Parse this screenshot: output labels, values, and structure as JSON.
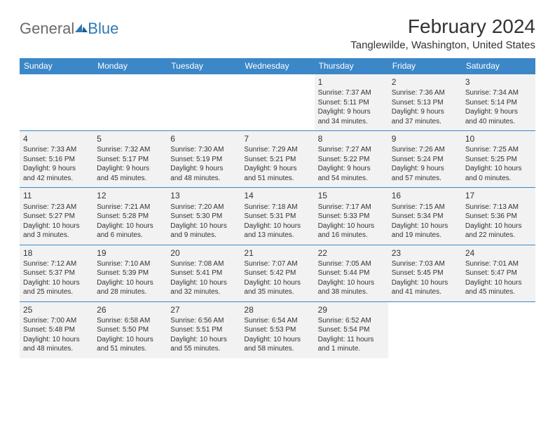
{
  "logo": {
    "general": "General",
    "blue": "Blue"
  },
  "title": "February 2024",
  "location": "Tanglewilde, Washington, United States",
  "colors": {
    "header_bg": "#3b87c8",
    "header_text": "#ffffff",
    "cell_filled_bg": "#f2f2f2",
    "cell_text": "#333333",
    "border": "#3b87c8",
    "logo_gray": "#6a6a6a",
    "logo_blue": "#2f78b7"
  },
  "weekdays": [
    "Sunday",
    "Monday",
    "Tuesday",
    "Wednesday",
    "Thursday",
    "Friday",
    "Saturday"
  ],
  "weeks": [
    [
      null,
      null,
      null,
      null,
      {
        "day": "1",
        "sunrise": "Sunrise: 7:37 AM",
        "sunset": "Sunset: 5:11 PM",
        "daylight1": "Daylight: 9 hours",
        "daylight2": "and 34 minutes."
      },
      {
        "day": "2",
        "sunrise": "Sunrise: 7:36 AM",
        "sunset": "Sunset: 5:13 PM",
        "daylight1": "Daylight: 9 hours",
        "daylight2": "and 37 minutes."
      },
      {
        "day": "3",
        "sunrise": "Sunrise: 7:34 AM",
        "sunset": "Sunset: 5:14 PM",
        "daylight1": "Daylight: 9 hours",
        "daylight2": "and 40 minutes."
      }
    ],
    [
      {
        "day": "4",
        "sunrise": "Sunrise: 7:33 AM",
        "sunset": "Sunset: 5:16 PM",
        "daylight1": "Daylight: 9 hours",
        "daylight2": "and 42 minutes."
      },
      {
        "day": "5",
        "sunrise": "Sunrise: 7:32 AM",
        "sunset": "Sunset: 5:17 PM",
        "daylight1": "Daylight: 9 hours",
        "daylight2": "and 45 minutes."
      },
      {
        "day": "6",
        "sunrise": "Sunrise: 7:30 AM",
        "sunset": "Sunset: 5:19 PM",
        "daylight1": "Daylight: 9 hours",
        "daylight2": "and 48 minutes."
      },
      {
        "day": "7",
        "sunrise": "Sunrise: 7:29 AM",
        "sunset": "Sunset: 5:21 PM",
        "daylight1": "Daylight: 9 hours",
        "daylight2": "and 51 minutes."
      },
      {
        "day": "8",
        "sunrise": "Sunrise: 7:27 AM",
        "sunset": "Sunset: 5:22 PM",
        "daylight1": "Daylight: 9 hours",
        "daylight2": "and 54 minutes."
      },
      {
        "day": "9",
        "sunrise": "Sunrise: 7:26 AM",
        "sunset": "Sunset: 5:24 PM",
        "daylight1": "Daylight: 9 hours",
        "daylight2": "and 57 minutes."
      },
      {
        "day": "10",
        "sunrise": "Sunrise: 7:25 AM",
        "sunset": "Sunset: 5:25 PM",
        "daylight1": "Daylight: 10 hours",
        "daylight2": "and 0 minutes."
      }
    ],
    [
      {
        "day": "11",
        "sunrise": "Sunrise: 7:23 AM",
        "sunset": "Sunset: 5:27 PM",
        "daylight1": "Daylight: 10 hours",
        "daylight2": "and 3 minutes."
      },
      {
        "day": "12",
        "sunrise": "Sunrise: 7:21 AM",
        "sunset": "Sunset: 5:28 PM",
        "daylight1": "Daylight: 10 hours",
        "daylight2": "and 6 minutes."
      },
      {
        "day": "13",
        "sunrise": "Sunrise: 7:20 AM",
        "sunset": "Sunset: 5:30 PM",
        "daylight1": "Daylight: 10 hours",
        "daylight2": "and 9 minutes."
      },
      {
        "day": "14",
        "sunrise": "Sunrise: 7:18 AM",
        "sunset": "Sunset: 5:31 PM",
        "daylight1": "Daylight: 10 hours",
        "daylight2": "and 13 minutes."
      },
      {
        "day": "15",
        "sunrise": "Sunrise: 7:17 AM",
        "sunset": "Sunset: 5:33 PM",
        "daylight1": "Daylight: 10 hours",
        "daylight2": "and 16 minutes."
      },
      {
        "day": "16",
        "sunrise": "Sunrise: 7:15 AM",
        "sunset": "Sunset: 5:34 PM",
        "daylight1": "Daylight: 10 hours",
        "daylight2": "and 19 minutes."
      },
      {
        "day": "17",
        "sunrise": "Sunrise: 7:13 AM",
        "sunset": "Sunset: 5:36 PM",
        "daylight1": "Daylight: 10 hours",
        "daylight2": "and 22 minutes."
      }
    ],
    [
      {
        "day": "18",
        "sunrise": "Sunrise: 7:12 AM",
        "sunset": "Sunset: 5:37 PM",
        "daylight1": "Daylight: 10 hours",
        "daylight2": "and 25 minutes."
      },
      {
        "day": "19",
        "sunrise": "Sunrise: 7:10 AM",
        "sunset": "Sunset: 5:39 PM",
        "daylight1": "Daylight: 10 hours",
        "daylight2": "and 28 minutes."
      },
      {
        "day": "20",
        "sunrise": "Sunrise: 7:08 AM",
        "sunset": "Sunset: 5:41 PM",
        "daylight1": "Daylight: 10 hours",
        "daylight2": "and 32 minutes."
      },
      {
        "day": "21",
        "sunrise": "Sunrise: 7:07 AM",
        "sunset": "Sunset: 5:42 PM",
        "daylight1": "Daylight: 10 hours",
        "daylight2": "and 35 minutes."
      },
      {
        "day": "22",
        "sunrise": "Sunrise: 7:05 AM",
        "sunset": "Sunset: 5:44 PM",
        "daylight1": "Daylight: 10 hours",
        "daylight2": "and 38 minutes."
      },
      {
        "day": "23",
        "sunrise": "Sunrise: 7:03 AM",
        "sunset": "Sunset: 5:45 PM",
        "daylight1": "Daylight: 10 hours",
        "daylight2": "and 41 minutes."
      },
      {
        "day": "24",
        "sunrise": "Sunrise: 7:01 AM",
        "sunset": "Sunset: 5:47 PM",
        "daylight1": "Daylight: 10 hours",
        "daylight2": "and 45 minutes."
      }
    ],
    [
      {
        "day": "25",
        "sunrise": "Sunrise: 7:00 AM",
        "sunset": "Sunset: 5:48 PM",
        "daylight1": "Daylight: 10 hours",
        "daylight2": "and 48 minutes."
      },
      {
        "day": "26",
        "sunrise": "Sunrise: 6:58 AM",
        "sunset": "Sunset: 5:50 PM",
        "daylight1": "Daylight: 10 hours",
        "daylight2": "and 51 minutes."
      },
      {
        "day": "27",
        "sunrise": "Sunrise: 6:56 AM",
        "sunset": "Sunset: 5:51 PM",
        "daylight1": "Daylight: 10 hours",
        "daylight2": "and 55 minutes."
      },
      {
        "day": "28",
        "sunrise": "Sunrise: 6:54 AM",
        "sunset": "Sunset: 5:53 PM",
        "daylight1": "Daylight: 10 hours",
        "daylight2": "and 58 minutes."
      },
      {
        "day": "29",
        "sunrise": "Sunrise: 6:52 AM",
        "sunset": "Sunset: 5:54 PM",
        "daylight1": "Daylight: 11 hours",
        "daylight2": "and 1 minute."
      },
      null,
      null
    ]
  ]
}
